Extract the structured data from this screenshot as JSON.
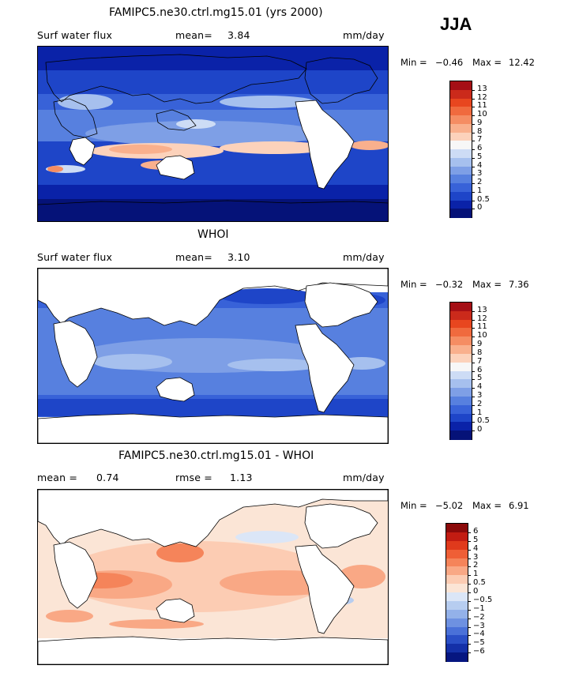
{
  "season": "JJA",
  "panels": [
    {
      "title": "FAMIPC5.ne30.ctrl.mg15.01 (yrs 2000)",
      "left_label": "Surf water flux",
      "stat_label": "mean=",
      "stat_value": "3.84",
      "stat2_label": "",
      "stat2_value": "",
      "units": "mm/day",
      "min_label": "Min =",
      "min_value": "−0.46",
      "max_label": "Max =",
      "max_value": "12.42",
      "colorbar_levels": [
        "13",
        "12",
        "11",
        "10",
        "9",
        "8",
        "7",
        "6",
        "5",
        "4",
        "3",
        "2",
        "1",
        "0.5",
        "0"
      ],
      "colorbar_colors": [
        "#a50f15",
        "#cb2a1b",
        "#e8461f",
        "#f06a3e",
        "#f58d63",
        "#f9b08d",
        "#fcd2bb",
        "#f7f7f7",
        "#cddcf5",
        "#a6c0ee",
        "#7e9fe6",
        "#5780df",
        "#3862d8",
        "#1e45c8",
        "#0a22a8",
        "#051278"
      ]
    },
    {
      "title": "WHOI",
      "left_label": "Surf water flux",
      "stat_label": "mean=",
      "stat_value": "3.10",
      "stat2_label": "",
      "stat2_value": "",
      "units": "mm/day",
      "min_label": "Min =",
      "min_value": "−0.32",
      "max_label": "Max =",
      "max_value": "7.36",
      "colorbar_levels": [
        "13",
        "12",
        "11",
        "10",
        "9",
        "8",
        "7",
        "6",
        "5",
        "4",
        "3",
        "2",
        "1",
        "0.5",
        "0"
      ],
      "colorbar_colors": [
        "#a50f15",
        "#cb2a1b",
        "#e8461f",
        "#f06a3e",
        "#f58d63",
        "#f9b08d",
        "#fcd2bb",
        "#f7f7f7",
        "#cddcf5",
        "#a6c0ee",
        "#7e9fe6",
        "#5780df",
        "#3862d8",
        "#1e45c8",
        "#0a22a8",
        "#051278"
      ]
    },
    {
      "title": "FAMIPC5.ne30.ctrl.mg15.01 - WHOI",
      "left_label": "",
      "stat_label": "mean =",
      "stat_value": "0.74",
      "stat2_label": "rmse =",
      "stat2_value": "1.13",
      "units": "mm/day",
      "min_label": "Min =",
      "min_value": "−5.02",
      "max_label": "Max =",
      "max_value": "6.91",
      "colorbar_levels": [
        "6",
        "5",
        "4",
        "3",
        "2",
        "1",
        "0.5",
        "0",
        "−0.5",
        "−1",
        "−2",
        "−3",
        "−4",
        "−5",
        "−6"
      ],
      "colorbar_colors": [
        "#8b0a0a",
        "#c21c12",
        "#e03a1c",
        "#ef5f36",
        "#f5845a",
        "#f9a885",
        "#fcccb3",
        "#fbe5d6",
        "#dbe6f7",
        "#b7cdf0",
        "#93b1e9",
        "#6e91e1",
        "#4a71d8",
        "#2a4fc6",
        "#1430a8",
        "#061680"
      ]
    }
  ]
}
